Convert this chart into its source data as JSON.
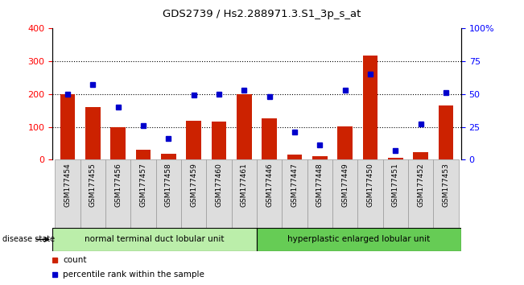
{
  "title": "GDS2739 / Hs2.288971.3.S1_3p_s_at",
  "samples": [
    "GSM177454",
    "GSM177455",
    "GSM177456",
    "GSM177457",
    "GSM177458",
    "GSM177459",
    "GSM177460",
    "GSM177461",
    "GSM177446",
    "GSM177447",
    "GSM177448",
    "GSM177449",
    "GSM177450",
    "GSM177451",
    "GSM177452",
    "GSM177453"
  ],
  "counts": [
    200,
    160,
    100,
    30,
    18,
    118,
    115,
    200,
    127,
    15,
    10,
    102,
    318,
    5,
    22,
    165
  ],
  "percentiles": [
    50,
    57,
    40,
    26,
    16,
    49,
    50,
    53,
    48,
    21,
    11,
    53,
    65,
    7,
    27,
    51
  ],
  "group1_label": "normal terminal duct lobular unit",
  "group2_label": "hyperplastic enlarged lobular unit",
  "group1_count": 8,
  "group2_count": 8,
  "bar_color": "#cc2200",
  "dot_color": "#0000cc",
  "left_ylim": [
    0,
    400
  ],
  "right_ylim": [
    0,
    100
  ],
  "left_yticks": [
    0,
    100,
    200,
    300,
    400
  ],
  "right_yticks": [
    0,
    25,
    50,
    75,
    100
  ],
  "right_yticklabels": [
    "0",
    "25",
    "50",
    "75",
    "100%"
  ],
  "group1_color": "#bbeeaa",
  "group2_color": "#66cc55",
  "legend_count_label": "count",
  "legend_pct_label": "percentile rank within the sample",
  "disease_state_label": "disease state"
}
